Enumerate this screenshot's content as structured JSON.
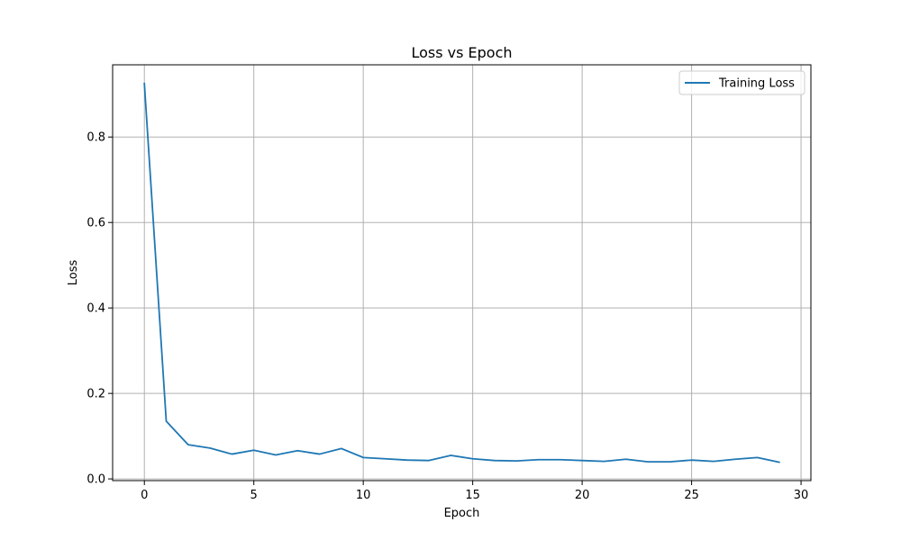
{
  "chart_data": {
    "type": "line",
    "title": "Loss vs Epoch",
    "xlabel": "Epoch",
    "ylabel": "Loss",
    "xlim": [
      -1.45,
      30.45
    ],
    "ylim": [
      -0.004,
      0.969
    ],
    "xticks": [
      0,
      5,
      10,
      15,
      20,
      25,
      30
    ],
    "yticks": [
      0.0,
      0.2,
      0.4,
      0.6,
      0.8
    ],
    "xtick_labels": [
      "0",
      "5",
      "10",
      "15",
      "20",
      "25",
      "30"
    ],
    "ytick_labels": [
      "0.0",
      "0.2",
      "0.4",
      "0.6",
      "0.8"
    ],
    "grid": true,
    "legend_position": "top-right",
    "series": [
      {
        "name": "Training Loss",
        "color": "#1f77b4",
        "x": [
          0,
          1,
          2,
          3,
          4,
          5,
          6,
          7,
          8,
          9,
          10,
          11,
          12,
          13,
          14,
          15,
          16,
          17,
          18,
          19,
          20,
          21,
          22,
          23,
          24,
          25,
          26,
          27,
          28,
          29
        ],
        "y": [
          0.925,
          0.135,
          0.08,
          0.072,
          0.058,
          0.067,
          0.056,
          0.066,
          0.058,
          0.071,
          0.05,
          0.047,
          0.044,
          0.043,
          0.055,
          0.047,
          0.043,
          0.042,
          0.045,
          0.045,
          0.043,
          0.041,
          0.046,
          0.04,
          0.04,
          0.044,
          0.041,
          0.046,
          0.05,
          0.039
        ]
      }
    ]
  }
}
